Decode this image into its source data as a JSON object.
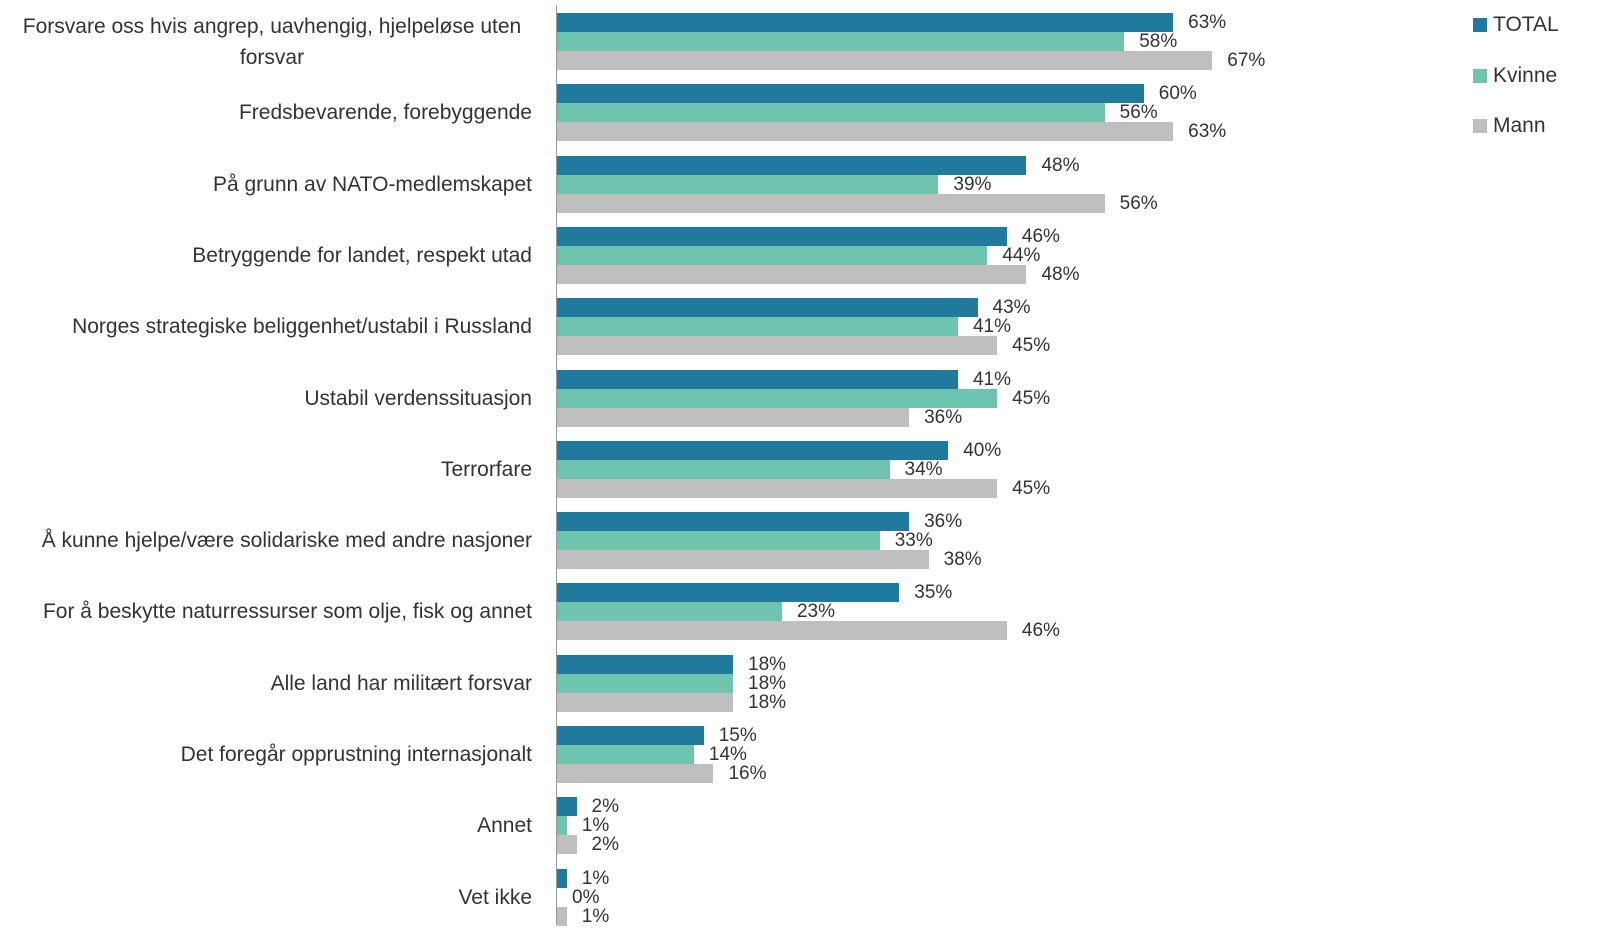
{
  "chart_data": {
    "type": "bar",
    "orientation": "horizontal",
    "categories": [
      "Forsvare oss hvis angrep, uavhengig, hjelpeløse uten forsvar",
      "Fredsbevarende, forebyggende",
      "På grunn av NATO-medlemskapet",
      "Betryggende for landet, respekt utad",
      "Norges strategiske beliggenhet/ustabil i Russland",
      "Ustabil verdenssituasjon",
      "Terrorfare",
      "Å kunne hjelpe/være solidariske med andre nasjoner",
      "For å beskytte naturressurser som olje, fisk og annet",
      "Alle land har militært forsvar",
      "Det foregår opprustning internasjonalt",
      "Annet",
      "Vet ikke"
    ],
    "series": [
      {
        "name": "TOTAL",
        "color": "#1f7a9e",
        "values": [
          63,
          60,
          48,
          46,
          43,
          41,
          40,
          36,
          35,
          18,
          15,
          2,
          1
        ],
        "value_labels": [
          "63%",
          "60%",
          "48%",
          "46%",
          "43%",
          "41%",
          "40%",
          "36%",
          "35%",
          "18%",
          "15%",
          "2%",
          "1%"
        ]
      },
      {
        "name": "Kvinne",
        "color": "#6fc4b0",
        "values": [
          58,
          56,
          39,
          44,
          41,
          45,
          34,
          33,
          23,
          18,
          14,
          1,
          0
        ],
        "value_labels": [
          "58%",
          "56%",
          "39%",
          "44%",
          "41%",
          "45%",
          "34%",
          "33%",
          "23%",
          "18%",
          "14%",
          "1%",
          "0%"
        ]
      },
      {
        "name": "Mann",
        "color": "#bfbfbf",
        "values": [
          67,
          63,
          56,
          48,
          45,
          36,
          45,
          38,
          46,
          18,
          16,
          2,
          1
        ],
        "value_labels": [
          "67%",
          "63%",
          "56%",
          "48%",
          "45%",
          "36%",
          "45%",
          "38%",
          "46%",
          "18%",
          "16%",
          "2%",
          "1%"
        ]
      }
    ],
    "xlim": [
      0,
      100
    ],
    "legend": "top-right"
  }
}
